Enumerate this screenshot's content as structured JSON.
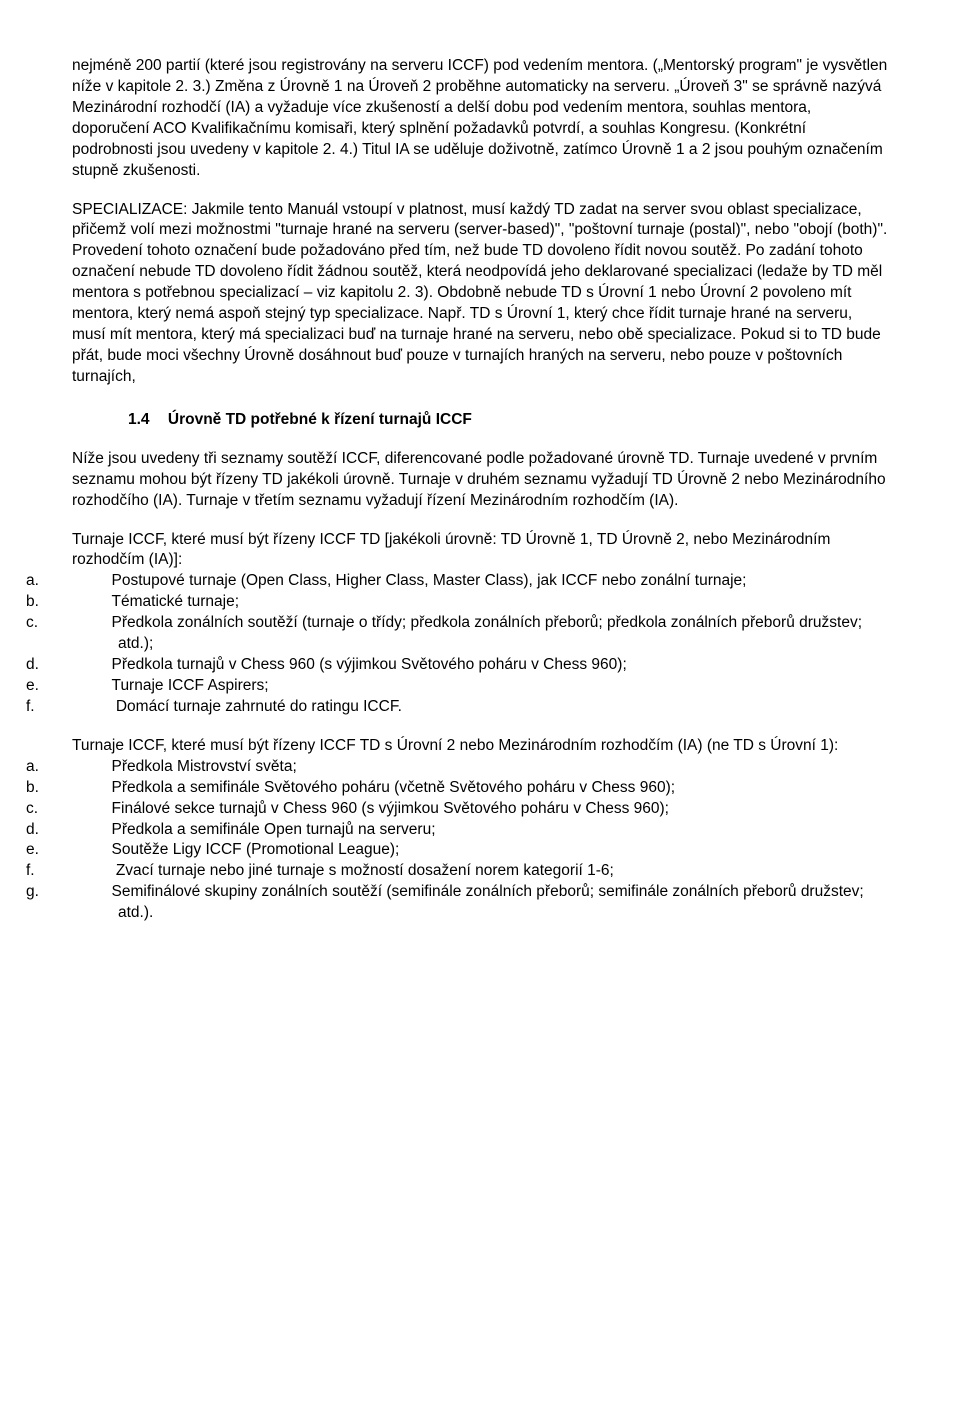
{
  "p1": "nejméně 200 partií (které jsou registrovány na serveru ICCF) pod vedením mentora. („Mentorský program\" je vysvětlen níže v kapitole 2. 3.) Změna z Úrovně 1 na Úroveň 2 proběhne automaticky na serveru. „Úroveň 3\" se správně nazývá Mezinárodní rozhodčí (IA) a vyžaduje více zkušeností a delší dobu pod vedením mentora, souhlas mentora, doporučení ACO Kvalifikačnímu komisaři, který splnění požadavků potvrdí, a souhlas Kongresu. (Konkrétní podrobnosti jsou uvedeny v kapitole 2. 4.) Titul IA se uděluje doživotně, zatímco Úrovně 1 a 2 jsou pouhým označením stupně zkušenosti.",
  "p2": "SPECIALIZACE:  Jakmile tento Manuál vstoupí v platnost, musí každý TD zadat na server svou oblast specializace, přičemž volí mezi možnostmi \"turnaje hrané na serveru (server-based)\", \"poštovní turnaje (postal)\", nebo \"obojí (both)\". Provedení tohoto označení bude požadováno před tím, než bude TD dovoleno řídit novou soutěž. Po zadání tohoto označení nebude TD dovoleno řídit žádnou soutěž, která neodpovídá jeho deklarované specializaci (ledaže by TD měl mentora s potřebnou specializací – viz kapitolu 2. 3). Obdobně nebude TD s Úrovní 1 nebo Úrovní 2 povoleno mít mentora, který nemá aspoň stejný typ specializace. Např. TD s Úrovní 1, který chce řídit turnaje hrané na serveru, musí mít mentora, který má specializaci buď na turnaje hrané na serveru, nebo obě specializace. Pokud si to TD bude přát, bude moci všechny Úrovně dosáhnout buď pouze v turnajích hraných na serveru, nebo pouze v poštovních turnajích,",
  "heading": {
    "num": "1.4",
    "text": "Úrovně TD potřebné k řízení turnajů ICCF"
  },
  "p3": "Níže jsou uvedeny tři seznamy soutěží ICCF, diferencované podle požadované úrovně TD. Turnaje uvedené v prvním seznamu mohou být řízeny TD jakékoli úrovně. Turnaje v druhém seznamu vyžadují TD Úrovně 2 nebo Mezinárodního rozhodčího (IA). Turnaje v třetím seznamu vyžadují řízení Mezinárodním rozhodčím (IA).",
  "list1": {
    "intro": "Turnaje ICCF, které musí být řízeny ICCF TD [jakékoli úrovně: TD Úrovně 1, TD Úrovně 2, nebo Mezinárodním rozhodčím (IA)]:",
    "items": [
      {
        "letter": "a.",
        "text": "Postupové turnaje (Open Class, Higher Class, Master Class), jak ICCF nebo zonální turnaje;"
      },
      {
        "letter": "b.",
        "text": "Tématické turnaje;"
      },
      {
        "letter": "c.",
        "text": "Předkola zonálních soutěží (turnaje o třídy; předkola zonálních přeborů; předkola zonálních přeborů družstev; atd.);"
      },
      {
        "letter": "d.",
        "text": "Předkola turnajů v Chess 960 (s výjimkou Světového poháru v Chess 960);"
      },
      {
        "letter": "e.",
        "text": "Turnaje ICCF Aspirers;"
      },
      {
        "letter": "f.",
        "text": "Domácí turnaje zahrnuté do ratingu ICCF."
      }
    ]
  },
  "list2": {
    "intro": "Turnaje ICCF, které musí být řízeny ICCF TD s Úrovní 2 nebo Mezinárodním rozhodčím (IA) (ne TD s Úrovní 1):",
    "items": [
      {
        "letter": "a.",
        "text": "Předkola Mistrovství světa;"
      },
      {
        "letter": "b.",
        "text": "Předkola a semifinále Světového poháru (včetně Světového poháru v Chess 960);"
      },
      {
        "letter": "c.",
        "text": "Finálové sekce turnajů v Chess 960 (s výjimkou Světového poháru v Chess 960);"
      },
      {
        "letter": "d.",
        "text": "Předkola a semifinále Open turnajů na serveru;"
      },
      {
        "letter": "e.",
        "text": "Soutěže Ligy ICCF (Promotional League);"
      },
      {
        "letter": "f.",
        "text": "Zvací turnaje nebo jiné turnaje s možností dosažení norem kategorií 1-6;"
      },
      {
        "letter": "g.",
        "text": "Semifinálové skupiny zonálních soutěží (semifinále zonálních přeborů; semifinále zonálních přeborů družstev; atd.)."
      }
    ]
  }
}
